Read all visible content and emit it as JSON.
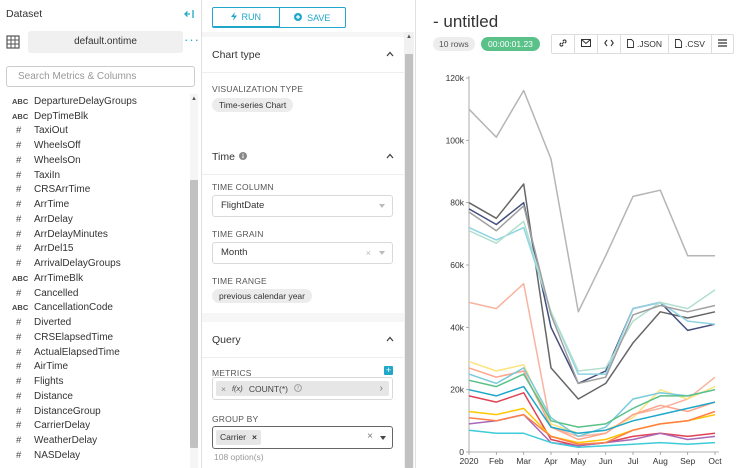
{
  "datasource": {
    "header": "Dataset",
    "name": "default.ontime",
    "search_placeholder": "Search Metrics & Columns",
    "columns": [
      {
        "type": "ABC",
        "name": "DepartureDelayGroups"
      },
      {
        "type": "ABC",
        "name": "DepTimeBlk"
      },
      {
        "type": "#",
        "name": "TaxiOut"
      },
      {
        "type": "#",
        "name": "WheelsOff"
      },
      {
        "type": "#",
        "name": "WheelsOn"
      },
      {
        "type": "#",
        "name": "TaxiIn"
      },
      {
        "type": "#",
        "name": "CRSArrTime"
      },
      {
        "type": "#",
        "name": "ArrTime"
      },
      {
        "type": "#",
        "name": "ArrDelay"
      },
      {
        "type": "#",
        "name": "ArrDelayMinutes"
      },
      {
        "type": "#",
        "name": "ArrDel15"
      },
      {
        "type": "#",
        "name": "ArrivalDelayGroups"
      },
      {
        "type": "ABC",
        "name": "ArrTimeBlk"
      },
      {
        "type": "#",
        "name": "Cancelled"
      },
      {
        "type": "ABC",
        "name": "CancellationCode"
      },
      {
        "type": "#",
        "name": "Diverted"
      },
      {
        "type": "#",
        "name": "CRSElapsedTime"
      },
      {
        "type": "#",
        "name": "ActualElapsedTime"
      },
      {
        "type": "#",
        "name": "AirTime"
      },
      {
        "type": "#",
        "name": "Flights"
      },
      {
        "type": "#",
        "name": "Distance"
      },
      {
        "type": "#",
        "name": "DistanceGroup"
      },
      {
        "type": "#",
        "name": "CarrierDelay"
      },
      {
        "type": "#",
        "name": "WeatherDelay"
      },
      {
        "type": "#",
        "name": "NASDelay"
      }
    ]
  },
  "controls": {
    "run_label": "RUN",
    "save_label": "SAVE",
    "chart_type": {
      "header": "Chart type",
      "viz_label": "VISUALIZATION TYPE",
      "viz_value": "Time-series Chart"
    },
    "time": {
      "header": "Time",
      "time_column_label": "TIME COLUMN",
      "time_column_value": "FlightDate",
      "time_grain_label": "TIME GRAIN",
      "time_grain_value": "Month",
      "time_range_label": "TIME RANGE",
      "time_range_value": "previous calendar year"
    },
    "query": {
      "header": "Query",
      "metrics_label": "METRICS",
      "metric_value": "COUNT(*)",
      "metric_prefix": "f(x)",
      "group_by_label": "GROUP BY",
      "group_by_value": "Carrier",
      "group_by_hint": "108 option(s)"
    }
  },
  "chart_header": {
    "title": "- untitled",
    "rows_badge": "10 rows",
    "time_badge": "00:00:01.23",
    "json_label": ".JSON",
    "csv_label": ".CSV"
  },
  "chart_data": {
    "type": "line",
    "categories": [
      "2020",
      "Feb",
      "Mar",
      "Apr",
      "May",
      "Jun",
      "Jul",
      "Aug",
      "Sep",
      "Oct"
    ],
    "y_ticks": [
      "0",
      "20k",
      "40k",
      "60k",
      "80k",
      "100k",
      "120k"
    ],
    "ylim": [
      0,
      120000
    ],
    "series": [
      {
        "color": "#b5b5b5",
        "values": [
          110000,
          101000,
          116000,
          94000,
          45000,
          63000,
          82000,
          84000,
          63000,
          63000
        ]
      },
      {
        "color": "#666666",
        "values": [
          80000,
          75000,
          86000,
          27000,
          17000,
          22000,
          35000,
          45000,
          43000,
          45000
        ]
      },
      {
        "color": "#454e7c",
        "values": [
          78000,
          73000,
          80000,
          40000,
          22000,
          26000,
          46000,
          48000,
          39000,
          41000
        ]
      },
      {
        "color": "#8fd3e4",
        "values": [
          72000,
          68000,
          72000,
          45000,
          25000,
          25000,
          46000,
          48000,
          42000,
          41000
        ]
      },
      {
        "color": "#b2dfce",
        "values": [
          71000,
          67000,
          74000,
          45000,
          26000,
          27000,
          42000,
          48000,
          46000,
          52000
        ]
      },
      {
        "color": "#a0a0a0",
        "values": [
          77000,
          71000,
          79000,
          44000,
          22000,
          24000,
          44000,
          47000,
          45000,
          47000
        ]
      },
      {
        "color": "#f8b4a0",
        "values": [
          48000,
          46000,
          54000,
          8000,
          5000,
          6000,
          12000,
          14000,
          17000,
          24000
        ]
      },
      {
        "color": "#fde380",
        "values": [
          29000,
          26000,
          28000,
          9000,
          6000,
          7000,
          11000,
          20000,
          17000,
          21000
        ]
      },
      {
        "color": "#ffa489",
        "values": [
          27000,
          24000,
          26000,
          8000,
          4000,
          6000,
          12000,
          15000,
          13000,
          16000
        ]
      },
      {
        "color": "#79cadc",
        "values": [
          25000,
          22000,
          27000,
          11000,
          5000,
          8000,
          17000,
          19000,
          18000,
          20000
        ]
      },
      {
        "color": "#5ac189",
        "values": [
          23000,
          21000,
          25000,
          10000,
          8000,
          9000,
          14000,
          18000,
          18000,
          20000
        ]
      },
      {
        "color": "#e04355",
        "values": [
          18000,
          16000,
          19000,
          4000,
          2000,
          3000,
          5000,
          6000,
          5000,
          6000
        ]
      },
      {
        "color": "#fcc700",
        "values": [
          13000,
          12000,
          14000,
          5000,
          3000,
          4000,
          7000,
          9000,
          10000,
          12000
        ]
      },
      {
        "color": "#a868b7",
        "values": [
          9000,
          10000,
          12000,
          3000,
          2000,
          3000,
          4000,
          6000,
          4000,
          5000
        ]
      },
      {
        "color": "#3cccda",
        "values": [
          7000,
          6000,
          6000,
          3000,
          1500,
          2000,
          2500,
          3000,
          2500,
          3000
        ]
      },
      {
        "color": "#ff7f44",
        "values": [
          11000,
          10000,
          12000,
          5000,
          2500,
          3000,
          7000,
          9000,
          10000,
          13000
        ]
      },
      {
        "color": "#1fa8c9",
        "values": [
          20000,
          18000,
          21000,
          8000,
          6000,
          7000,
          10000,
          12000,
          14000,
          16000
        ]
      }
    ]
  }
}
